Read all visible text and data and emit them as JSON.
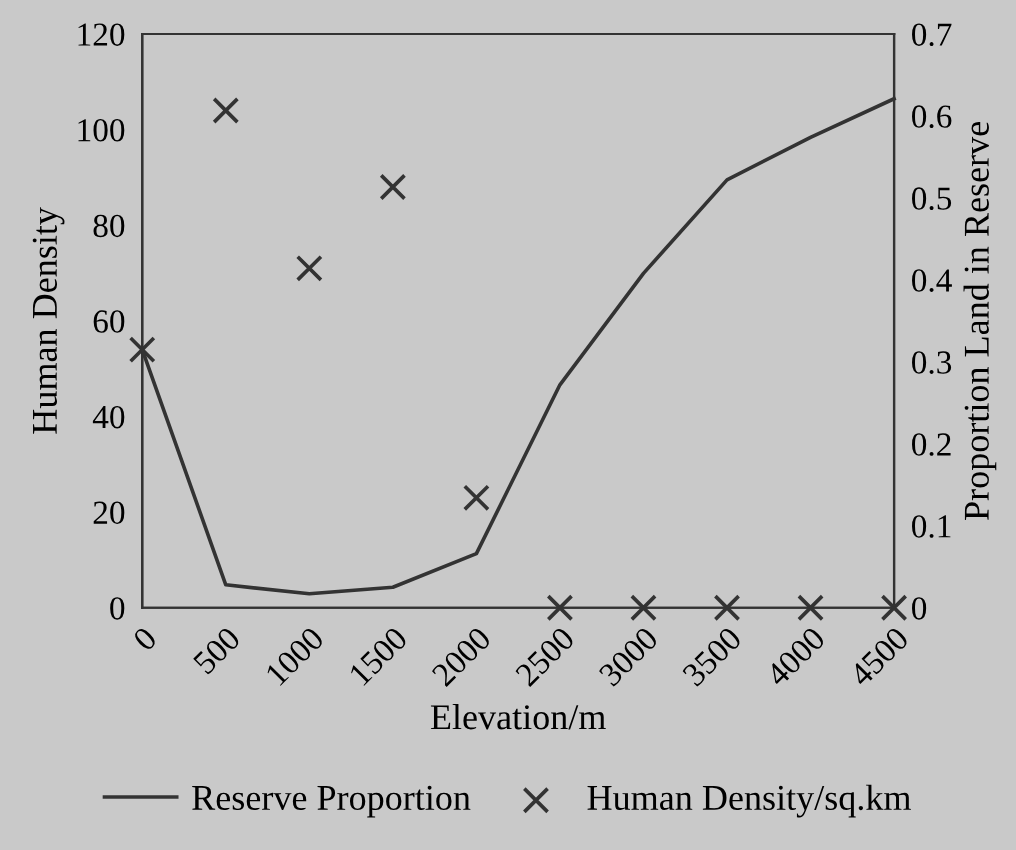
{
  "chart_data": {
    "type": "line",
    "xlabel": "Elevation/m",
    "ylabel": "Human Density",
    "y2label": "Proportion Land in Reserve",
    "x": [
      0,
      500,
      1000,
      1500,
      2000,
      2500,
      3000,
      3500,
      4000,
      4500
    ],
    "series": [
      {
        "name": "Reserve Proportion",
        "axis": "y2",
        "color": "#333333",
        "marker": "none",
        "line_style": "solid",
        "values": [
          0.315,
          0.028,
          0.017,
          0.025,
          0.066,
          0.272,
          0.408,
          0.522,
          0.574,
          0.621
        ]
      },
      {
        "name": "Human Density/sq.km",
        "type": "scatter",
        "color": "#333333",
        "marker": "cross",
        "values": [
          54,
          104,
          71,
          88,
          23,
          0,
          0,
          0,
          0,
          0
        ]
      }
    ],
    "xlim": [
      0,
      4500
    ],
    "xticks": [
      0,
      500,
      1000,
      1500,
      2000,
      2500,
      3000,
      3500,
      4000,
      4500
    ],
    "ylim": [
      0,
      120
    ],
    "yticks": [
      0,
      20,
      40,
      60,
      80,
      100,
      120
    ],
    "y2lim": [
      0,
      0.7
    ],
    "y2ticks": [
      0,
      0.1,
      0.2,
      0.3,
      0.4,
      0.5,
      0.6,
      0.7
    ],
    "grid": false,
    "legend": "bottom"
  }
}
